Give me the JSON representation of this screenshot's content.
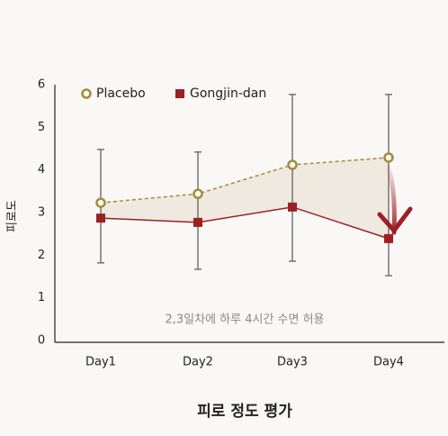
{
  "chart_data": {
    "type": "line",
    "y_label": "피로도",
    "x_label": "피로 정도 평가",
    "annotation": "2,3일차에 하루 4시간 수면 허용",
    "categories": [
      "Day1",
      "Day2",
      "Day3",
      "Day4"
    ],
    "series": [
      {
        "name": "Placebo",
        "color": "#a58a3c",
        "dashed": true,
        "marker": "circle",
        "values": [
          3.23,
          3.44,
          4.12,
          4.29
        ]
      },
      {
        "name": "Gongjin-dan",
        "color": "#9b2024",
        "dashed": false,
        "marker": "square",
        "values": [
          2.87,
          2.77,
          3.13,
          2.39
        ]
      }
    ],
    "error_ranges": [
      [
        1.82,
        4.48
      ],
      [
        1.67,
        4.42
      ],
      [
        1.86,
        5.77
      ],
      [
        1.52,
        5.77
      ]
    ],
    "fill_between": "#efe9df",
    "ylim": [
      0,
      6
    ],
    "yticks": [
      0,
      1,
      2,
      3,
      4,
      5,
      6
    ],
    "grid": false
  }
}
